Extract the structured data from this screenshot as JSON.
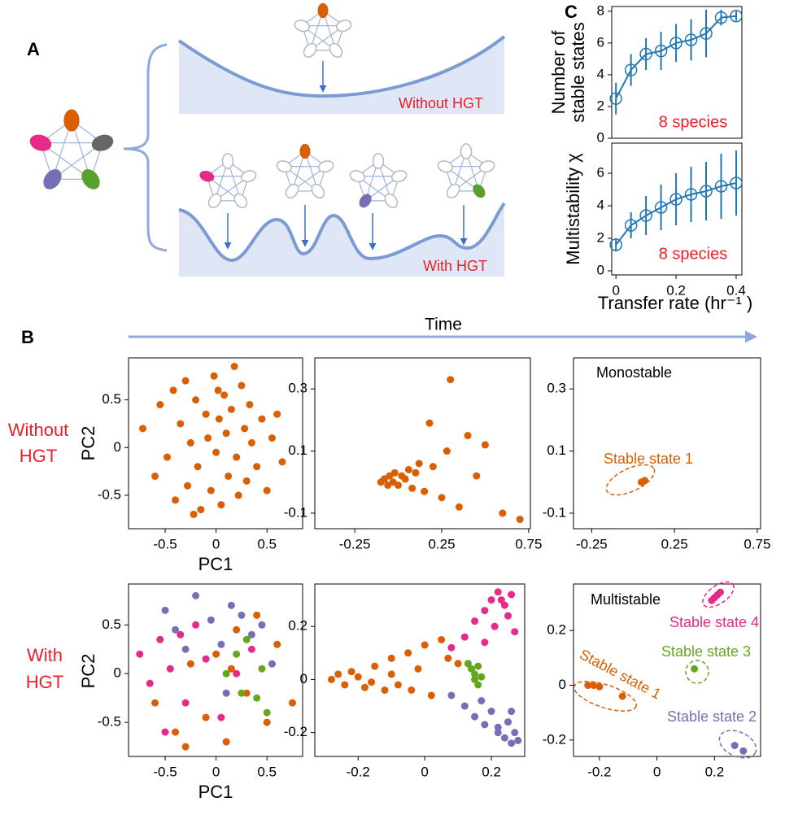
{
  "panel_labels": [
    "A",
    "B",
    "C"
  ],
  "panel_a": {
    "without": "Without HGT",
    "with": "With HGT"
  },
  "time_label": "Time",
  "row_labels": [
    [
      "Without",
      "HGT"
    ],
    [
      "With",
      "HGT"
    ]
  ],
  "chart_data": [
    {
      "type": "line",
      "ylabel": [
        "Number of",
        "stable states"
      ],
      "color": "#1f77b4",
      "x": [
        0,
        0.05,
        0.1,
        0.15,
        0.2,
        0.25,
        0.3,
        0.35,
        0.4
      ],
      "values": [
        2.5,
        4.3,
        5.3,
        5.5,
        6.0,
        6.2,
        6.6,
        7.6,
        7.7
      ],
      "errors": [
        1.0,
        1.0,
        1.0,
        1.2,
        1.2,
        1.3,
        1.5,
        0.5,
        0.3
      ],
      "xlim": [
        -0.014,
        0.419
      ],
      "ylim": [
        0,
        8.3
      ],
      "yticks": [
        0,
        2,
        4,
        6,
        8
      ],
      "annotations": [
        {
          "text": "8 species",
          "color": "#e8202a"
        }
      ]
    },
    {
      "type": "line",
      "ylabel": [
        "Multistability χ"
      ],
      "xlabel": "Transfer rate (hr⁻¹ )",
      "color": "#1f77b4",
      "x": [
        0,
        0.05,
        0.1,
        0.15,
        0.2,
        0.25,
        0.3,
        0.35,
        0.4
      ],
      "values": [
        1.6,
        2.8,
        3.4,
        3.9,
        4.4,
        4.7,
        4.9,
        5.2,
        5.4
      ],
      "errors": [
        0.4,
        0.8,
        1.2,
        1.4,
        1.6,
        1.7,
        1.8,
        2.0,
        2.0
      ],
      "xlim": [
        -0.014,
        0.419
      ],
      "ylim": [
        -0.25,
        7.85
      ],
      "xticks": [
        0,
        0.2,
        0.4
      ],
      "yticks": [
        0,
        2,
        4,
        6
      ],
      "annotations": [
        {
          "text": "8 species",
          "color": "#e8202a"
        }
      ]
    },
    {
      "type": "scatter",
      "xlabel": "PC1",
      "ylabel": [
        "PC2"
      ],
      "xlim": [
        -0.86,
        0.85
      ],
      "ylim": [
        -0.85,
        0.94
      ],
      "xticks": [
        -0.5,
        0,
        0.5
      ],
      "yticks": [
        -0.5,
        0,
        0.5
      ],
      "series": [
        {
          "color": "#d95f02",
          "x": [
            -0.72,
            -0.6,
            -0.55,
            -0.48,
            -0.42,
            -0.4,
            -0.35,
            -0.3,
            -0.28,
            -0.25,
            -0.2,
            -0.18,
            -0.15,
            -0.1,
            -0.08,
            -0.05,
            -0.02,
            0,
            0.03,
            0.05,
            0.08,
            0.1,
            0.12,
            0.15,
            0.18,
            0.2,
            0.22,
            0.25,
            0.28,
            0.3,
            0.33,
            0.35,
            0.4,
            0.45,
            0.5,
            0.55,
            0.6,
            0.65,
            -0.22,
            0.02
          ],
          "y": [
            0.2,
            -0.3,
            0.45,
            -0.1,
            0.6,
            -0.55,
            0.25,
            0.7,
            -0.4,
            0.05,
            0.5,
            -0.2,
            -0.65,
            0.35,
            0.1,
            -0.45,
            0.75,
            -0.05,
            0.3,
            -0.6,
            0.55,
            0.15,
            -0.3,
            0.4,
            0.85,
            -0.1,
            -0.5,
            0.65,
            0.2,
            -0.35,
            0.45,
            0.05,
            -0.2,
            0.3,
            -0.45,
            0.1,
            0.35,
            -0.15,
            -0.7,
            0.6
          ]
        }
      ]
    },
    {
      "type": "scatter",
      "xlim": [
        -0.48,
        0.76
      ],
      "ylim": [
        -0.15,
        0.4
      ],
      "xticks": [
        -0.25,
        0.25,
        0.75
      ],
      "yticks": [
        -0.1,
        0.1,
        0.3
      ],
      "series": [
        {
          "color": "#d95f02",
          "x": [
            -0.1,
            -0.08,
            -0.06,
            -0.05,
            -0.03,
            -0.02,
            0,
            0.02,
            0.04,
            0.06,
            0.08,
            0.1,
            0.12,
            0.15,
            0.18,
            0.2,
            0.25,
            0.28,
            0.3,
            0.35,
            0.4,
            0.45,
            0.5,
            0.6,
            0.7
          ],
          "y": [
            0,
            0.01,
            -0.01,
            0.02,
            0,
            0.03,
            -0.01,
            0.02,
            0.01,
            0.04,
            -0.02,
            0.03,
            0.06,
            -0.03,
            0.19,
            0.05,
            -0.05,
            0.1,
            0.33,
            -0.08,
            0.15,
            0.02,
            0.12,
            -0.1,
            -0.12
          ]
        }
      ]
    },
    {
      "type": "scatter",
      "xlim": [
        -0.36,
        0.77
      ],
      "ylim": [
        -0.15,
        0.4
      ],
      "xticks": [
        -0.25,
        0.25,
        0.75
      ],
      "yticks": [
        -0.1,
        0.1,
        0.3
      ],
      "series": [
        {
          "color": "#d95f02",
          "x": [
            0.05,
            0.07
          ],
          "y": [
            0,
            0.005
          ]
        }
      ],
      "annotations": [
        {
          "text": "Monostable",
          "color": "#000000"
        },
        {
          "text": "Stable state 1",
          "color": "#d95f02"
        }
      ]
    },
    {
      "type": "scatter",
      "xlabel": "PC1",
      "ylabel": [
        "PC2"
      ],
      "xlim": [
        -0.86,
        0.85
      ],
      "ylim": [
        -0.85,
        0.92
      ],
      "xticks": [
        -0.5,
        0,
        0.5
      ],
      "yticks": [
        -0.5,
        0,
        0.5
      ],
      "series": [
        {
          "color": "#d95f02",
          "x": [
            -0.6,
            -0.4,
            -0.25,
            -0.1,
            0,
            0.1,
            0.2,
            0.3,
            0.4,
            0.5,
            0.6,
            0.75,
            -0.3,
            0.15
          ],
          "y": [
            -0.3,
            -0.6,
            0.1,
            -0.45,
            0.2,
            -0.7,
            0.45,
            -0.2,
            0.6,
            -0.5,
            0.3,
            -0.3,
            -0.75,
            0.05
          ]
        },
        {
          "color": "#e7298a",
          "x": [
            -0.75,
            -0.65,
            -0.55,
            -0.45,
            -0.3,
            -0.2,
            -0.1,
            0.05,
            0.2,
            0.35,
            -0.5,
            -0.35
          ],
          "y": [
            0.2,
            -0.1,
            0.35,
            0.05,
            -0.3,
            0.5,
            0.15,
            -0.45,
            0,
            0.25,
            -0.6,
            0.4
          ]
        },
        {
          "color": "#7570b3",
          "x": [
            -0.5,
            -0.4,
            -0.2,
            -0.05,
            0.05,
            0.15,
            0.25,
            0.35,
            0.45,
            0.55,
            -0.3,
            0.1
          ],
          "y": [
            0.65,
            0.45,
            0.8,
            0.55,
            0.3,
            0.7,
            0.6,
            0.4,
            0.5,
            0.1,
            0.25,
            -0.2
          ]
        },
        {
          "color": "#66a61e",
          "x": [
            0.1,
            0.2,
            0.25,
            0.3,
            0.4,
            0.45,
            0.5
          ],
          "y": [
            0,
            0.2,
            -0.2,
            0.35,
            -0.25,
            0.05,
            -0.4
          ]
        }
      ]
    },
    {
      "type": "scatter",
      "xlim": [
        -0.33,
        0.3
      ],
      "ylim": [
        -0.29,
        0.36
      ],
      "xticks": [
        -0.2,
        0,
        0.2
      ],
      "yticks": [
        -0.2,
        0,
        0.2
      ],
      "series": [
        {
          "color": "#d95f02",
          "x": [
            -0.28,
            -0.26,
            -0.24,
            -0.22,
            -0.2,
            -0.18,
            -0.15,
            -0.12,
            -0.1,
            -0.08,
            -0.05,
            -0.02,
            0,
            0.02,
            0.05,
            0.07,
            0.1,
            -0.16,
            -0.1,
            -0.04
          ],
          "y": [
            0,
            0.02,
            -0.02,
            0.03,
            0.01,
            -0.03,
            0.05,
            -0.04,
            0.08,
            -0.02,
            0.1,
            0.04,
            0.13,
            -0.06,
            0.15,
            0.08,
            0.06,
            -0.01,
            0.02,
            -0.04
          ]
        },
        {
          "color": "#e7298a",
          "x": [
            0.08,
            0.12,
            0.15,
            0.18,
            0.2,
            0.21,
            0.22,
            0.24,
            0.25,
            0.26,
            0.27,
            0.18,
            0.23
          ],
          "y": [
            0.12,
            0.16,
            0.22,
            0.26,
            0.3,
            0.2,
            0.33,
            0.28,
            0.24,
            0.32,
            0.18,
            0.14,
            0.3
          ]
        },
        {
          "color": "#66a61e",
          "x": [
            0.13,
            0.14,
            0.15,
            0.16,
            0.17,
            0.15,
            0.16
          ],
          "y": [
            0.06,
            0.04,
            0.02,
            0.05,
            0.01,
            0,
            -0.02
          ]
        },
        {
          "color": "#7570b3",
          "x": [
            0.08,
            0.12,
            0.15,
            0.18,
            0.2,
            0.22,
            0.24,
            0.25,
            0.26,
            0.27,
            0.28,
            0.17,
            0.22,
            0.26
          ],
          "y": [
            -0.06,
            -0.1,
            -0.14,
            -0.17,
            -0.12,
            -0.2,
            -0.22,
            -0.16,
            -0.24,
            -0.2,
            -0.23,
            -0.08,
            -0.18,
            -0.12
          ]
        }
      ]
    },
    {
      "type": "scatter",
      "xlim": [
        -0.29,
        0.36
      ],
      "ylim": [
        -0.26,
        0.37
      ],
      "xticks": [
        -0.2,
        0,
        0.2
      ],
      "yticks": [
        -0.2,
        0,
        0.2
      ],
      "series": [
        {
          "color": "#d95f02",
          "x": [
            -0.24,
            -0.22,
            -0.2,
            -0.12
          ],
          "y": [
            0,
            0,
            -0.005,
            -0.04
          ]
        },
        {
          "color": "#e7298a",
          "x": [
            0.19,
            0.2,
            0.21,
            0.22
          ],
          "y": [
            0.31,
            0.32,
            0.33,
            0.34
          ]
        },
        {
          "color": "#66a61e",
          "x": [
            0.13
          ],
          "y": [
            0.06
          ]
        },
        {
          "color": "#7570b3",
          "x": [
            0.27,
            0.3
          ],
          "y": [
            -0.22,
            -0.24
          ]
        }
      ],
      "annotations": [
        {
          "text": "Multistable",
          "color": "#000000"
        },
        {
          "text": "Stable state 4",
          "color": "#e7298a"
        },
        {
          "text": "Stable state 3",
          "color": "#66a61e"
        },
        {
          "text": "Stable state 1",
          "color": "#d95f02"
        },
        {
          "text": "Stable state 2",
          "color": "#7570b3"
        }
      ]
    }
  ]
}
